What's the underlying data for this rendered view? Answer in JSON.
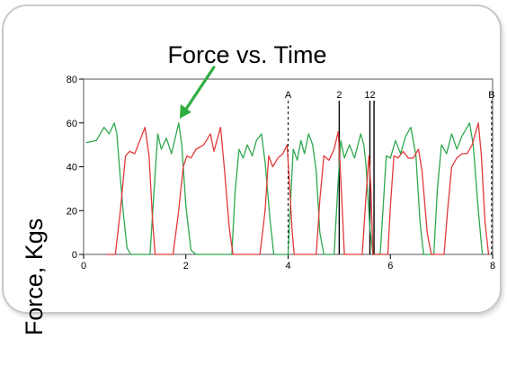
{
  "chart_data": {
    "type": "line",
    "title": "Force vs. Time",
    "ylabel": "Force, Kgs",
    "xlabel": "",
    "xlim": [
      0,
      8
    ],
    "ylim": [
      0,
      80
    ],
    "x_ticks": [
      "0",
      "2",
      "4",
      "6",
      "8"
    ],
    "y_ticks": [
      "0",
      "20",
      "40",
      "60",
      "80"
    ],
    "markers": [
      {
        "label": "A",
        "x": 4.0,
        "style": "dashed"
      },
      {
        "label": "2",
        "x": 5.0,
        "style": "solid"
      },
      {
        "label": "12",
        "x": 5.6,
        "style": "solid"
      },
      {
        "label": "",
        "x": 5.68,
        "style": "solid"
      },
      {
        "label": "B",
        "x": 7.98,
        "style": "dashed"
      }
    ],
    "annotation": {
      "type": "arrow",
      "color": "#2fae3f",
      "target": [
        1.88,
        62
      ]
    },
    "series": [
      {
        "color": "#2fa84f",
        "points": [
          [
            0.05,
            51
          ],
          [
            0.25,
            52
          ],
          [
            0.4,
            58
          ],
          [
            0.5,
            55
          ],
          [
            0.6,
            60
          ],
          [
            0.65,
            55
          ],
          [
            0.7,
            40
          ],
          [
            0.78,
            18
          ],
          [
            0.85,
            3
          ],
          [
            0.92,
            0
          ],
          [
            1.3,
            0
          ],
          [
            1.38,
            30
          ],
          [
            1.45,
            55
          ],
          [
            1.52,
            48
          ],
          [
            1.62,
            53
          ],
          [
            1.72,
            46
          ],
          [
            1.8,
            54
          ],
          [
            1.86,
            60
          ],
          [
            1.92,
            50
          ],
          [
            2.0,
            22
          ],
          [
            2.1,
            2
          ],
          [
            2.2,
            0
          ],
          [
            2.9,
            0
          ],
          [
            2.96,
            28
          ],
          [
            3.04,
            48
          ],
          [
            3.12,
            44
          ],
          [
            3.2,
            50
          ],
          [
            3.3,
            45
          ],
          [
            3.38,
            52
          ],
          [
            3.48,
            55
          ],
          [
            3.55,
            42
          ],
          [
            3.65,
            15
          ],
          [
            3.72,
            0
          ],
          [
            4.0,
            0
          ],
          [
            4.05,
            25
          ],
          [
            4.1,
            48
          ],
          [
            4.18,
            43
          ],
          [
            4.25,
            52
          ],
          [
            4.32,
            46
          ],
          [
            4.4,
            55
          ],
          [
            4.48,
            50
          ],
          [
            4.55,
            38
          ],
          [
            4.62,
            10
          ],
          [
            4.7,
            0
          ],
          [
            4.9,
            0
          ],
          [
            4.97,
            30
          ],
          [
            5.03,
            52
          ],
          [
            5.1,
            44
          ],
          [
            5.2,
            50
          ],
          [
            5.3,
            44
          ],
          [
            5.42,
            55
          ],
          [
            5.48,
            50
          ],
          [
            5.52,
            42
          ],
          [
            5.6,
            12
          ],
          [
            5.66,
            0
          ],
          [
            5.8,
            0
          ],
          [
            5.86,
            22
          ],
          [
            5.92,
            45
          ],
          [
            6.0,
            44
          ],
          [
            6.1,
            52
          ],
          [
            6.2,
            46
          ],
          [
            6.3,
            54
          ],
          [
            6.4,
            58
          ],
          [
            6.5,
            45
          ],
          [
            6.58,
            15
          ],
          [
            6.65,
            0
          ],
          [
            6.85,
            0
          ],
          [
            6.92,
            30
          ],
          [
            7.0,
            50
          ],
          [
            7.1,
            46
          ],
          [
            7.2,
            55
          ],
          [
            7.3,
            48
          ],
          [
            7.4,
            54
          ],
          [
            7.55,
            60
          ],
          [
            7.62,
            50
          ],
          [
            7.72,
            20
          ],
          [
            7.8,
            0
          ]
        ]
      },
      {
        "color": "#e23a3a",
        "points": [
          [
            0.45,
            0
          ],
          [
            0.55,
            0
          ],
          [
            0.62,
            0
          ],
          [
            0.72,
            20
          ],
          [
            0.82,
            45
          ],
          [
            0.9,
            47
          ],
          [
            1.0,
            46
          ],
          [
            1.1,
            52
          ],
          [
            1.2,
            58
          ],
          [
            1.28,
            45
          ],
          [
            1.35,
            15
          ],
          [
            1.4,
            0
          ],
          [
            1.75,
            0
          ],
          [
            1.85,
            18
          ],
          [
            1.95,
            40
          ],
          [
            2.02,
            45
          ],
          [
            2.1,
            44
          ],
          [
            2.2,
            48
          ],
          [
            2.35,
            50
          ],
          [
            2.48,
            55
          ],
          [
            2.55,
            47
          ],
          [
            2.68,
            58
          ],
          [
            2.75,
            40
          ],
          [
            2.85,
            12
          ],
          [
            2.92,
            0
          ],
          [
            3.45,
            0
          ],
          [
            3.55,
            20
          ],
          [
            3.62,
            45
          ],
          [
            3.7,
            40
          ],
          [
            3.8,
            44
          ],
          [
            3.9,
            46
          ],
          [
            3.98,
            50
          ],
          [
            4.02,
            35
          ],
          [
            4.08,
            10
          ],
          [
            4.12,
            0
          ],
          [
            4.55,
            0
          ],
          [
            4.62,
            25
          ],
          [
            4.7,
            45
          ],
          [
            4.8,
            43
          ],
          [
            4.9,
            48
          ],
          [
            4.98,
            56
          ],
          [
            5.02,
            40
          ],
          [
            5.07,
            15
          ],
          [
            5.1,
            0
          ],
          [
            5.45,
            0
          ],
          [
            5.52,
            25
          ],
          [
            5.58,
            45
          ],
          [
            5.62,
            30
          ],
          [
            5.66,
            0
          ],
          [
            5.95,
            0
          ],
          [
            6.0,
            22
          ],
          [
            6.07,
            45
          ],
          [
            6.15,
            44
          ],
          [
            6.25,
            47
          ],
          [
            6.35,
            44
          ],
          [
            6.45,
            44
          ],
          [
            6.55,
            48
          ],
          [
            6.62,
            38
          ],
          [
            6.72,
            10
          ],
          [
            6.8,
            0
          ],
          [
            7.05,
            0
          ],
          [
            7.12,
            20
          ],
          [
            7.2,
            40
          ],
          [
            7.3,
            44
          ],
          [
            7.4,
            46
          ],
          [
            7.5,
            46
          ],
          [
            7.6,
            50
          ],
          [
            7.72,
            60
          ],
          [
            7.78,
            45
          ],
          [
            7.85,
            15
          ],
          [
            7.92,
            0
          ]
        ]
      }
    ]
  }
}
